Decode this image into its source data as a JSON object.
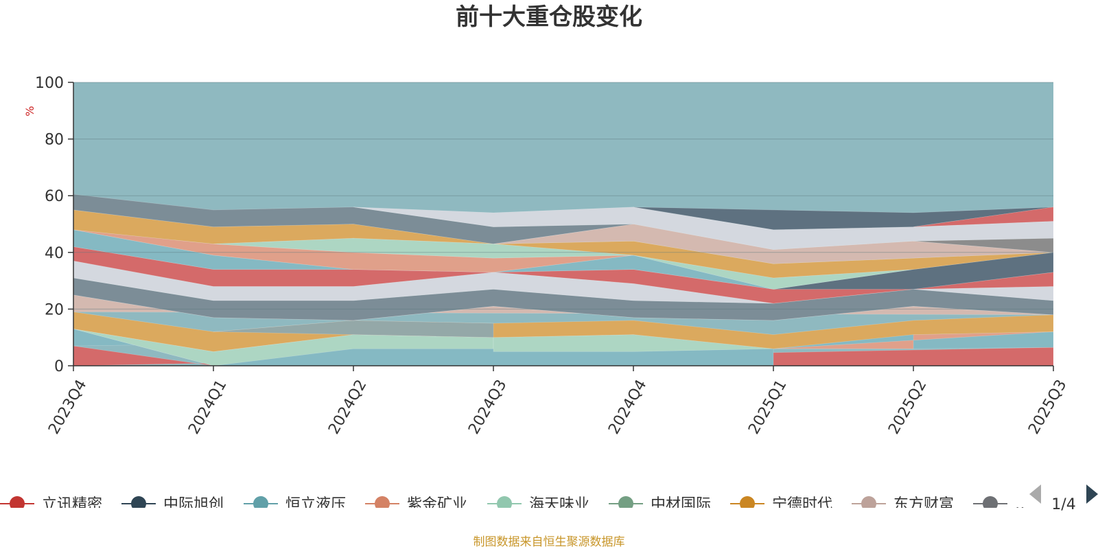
{
  "chart_data": {
    "type": "area",
    "title": "前十大重仓股变化",
    "ylabel": "%",
    "ylim": [
      0,
      100
    ],
    "yticks": [
      0,
      20,
      40,
      60,
      80,
      100
    ],
    "categories": [
      "2023Q4",
      "2024Q1",
      "2024Q2",
      "2024Q3",
      "2024Q4",
      "2025Q1",
      "2025Q2",
      "2025Q3"
    ],
    "layers": [
      {
        "color": "#d46a6a",
        "points": [
          [
            0,
            0
          ],
          [
            0,
            7
          ],
          [
            1,
            0
          ],
          [
            2,
            0
          ],
          [
            3,
            0
          ],
          [
            3,
            5
          ],
          [
            4,
            5
          ],
          [
            5,
            0
          ],
          [
            6,
            0
          ],
          [
            7,
            0
          ],
          [
            7,
            6.5
          ]
        ]
      },
      {
        "color": "#5e7180",
        "points": [
          [
            1,
            0
          ],
          [
            2,
            6
          ],
          [
            3,
            6
          ],
          [
            3,
            0
          ]
        ]
      },
      {
        "color": "#85b9c3",
        "points": [
          [
            0,
            7
          ],
          [
            0,
            13
          ],
          [
            1,
            0
          ],
          [
            5,
            0
          ],
          [
            5,
            6
          ],
          [
            6,
            6
          ],
          [
            7,
            6.5
          ],
          [
            7,
            12
          ]
        ]
      },
      {
        "color": "#e0a08a",
        "points": [
          [
            5,
            6
          ],
          [
            6,
            6
          ],
          [
            6,
            11
          ],
          [
            7,
            12
          ]
        ]
      },
      {
        "color": "#add6c3",
        "points": [
          [
            0,
            13
          ],
          [
            1,
            5
          ],
          [
            2,
            11
          ],
          [
            3,
            10
          ],
          [
            3,
            6
          ],
          [
            2,
            6
          ],
          [
            1,
            0
          ]
        ]
      },
      {
        "color": "#add6c3",
        "points": [
          [
            3,
            10
          ],
          [
            4,
            11
          ],
          [
            5,
            6
          ],
          [
            4,
            5
          ],
          [
            3,
            5
          ]
        ]
      },
      {
        "color": "#dba95e",
        "points": [
          [
            0,
            13
          ],
          [
            0,
            19
          ],
          [
            1,
            12
          ],
          [
            2,
            16
          ],
          [
            3,
            15
          ],
          [
            4,
            16
          ],
          [
            5,
            11
          ],
          [
            6,
            16
          ],
          [
            7,
            18
          ],
          [
            7,
            12
          ],
          [
            6,
            11
          ],
          [
            5,
            6
          ],
          [
            4,
            11
          ],
          [
            3,
            10
          ],
          [
            2,
            11
          ],
          [
            1,
            5
          ]
        ]
      },
      {
        "color": "#94a8a8",
        "points": [
          [
            1,
            12
          ],
          [
            2,
            16
          ],
          [
            3,
            15
          ],
          [
            3,
            10
          ],
          [
            2,
            11
          ]
        ]
      },
      {
        "color": "#d4b9b0",
        "points": [
          [
            0,
            19
          ],
          [
            0,
            25
          ],
          [
            1,
            17
          ],
          [
            2,
            16
          ],
          [
            3,
            21
          ],
          [
            4,
            17
          ],
          [
            5,
            16
          ],
          [
            6,
            21
          ],
          [
            7,
            18
          ]
        ]
      },
      {
        "color": "#7c8d97",
        "points": [
          [
            0,
            25
          ],
          [
            0,
            31
          ],
          [
            1,
            23
          ],
          [
            2,
            23
          ],
          [
            3,
            27
          ],
          [
            4,
            23
          ],
          [
            5,
            22
          ],
          [
            6,
            27
          ],
          [
            7,
            23
          ],
          [
            7,
            18
          ],
          [
            6,
            21
          ],
          [
            5,
            16
          ],
          [
            4,
            17
          ],
          [
            3,
            21
          ],
          [
            2,
            16
          ],
          [
            1,
            17
          ]
        ]
      },
      {
        "color": "#d4d8df",
        "points": [
          [
            0,
            31
          ],
          [
            0,
            37
          ],
          [
            1,
            28
          ],
          [
            2,
            28
          ],
          [
            3,
            33
          ],
          [
            4,
            29
          ],
          [
            5,
            22
          ],
          [
            6,
            27
          ],
          [
            7,
            28
          ],
          [
            7,
            23
          ],
          [
            6,
            27
          ],
          [
            5,
            22
          ],
          [
            4,
            23
          ],
          [
            3,
            27
          ],
          [
            2,
            23
          ],
          [
            1,
            23
          ]
        ]
      },
      {
        "color": "#d46a6a",
        "points": [
          [
            0,
            37
          ],
          [
            0,
            42
          ],
          [
            1,
            34
          ],
          [
            2,
            34
          ],
          [
            3,
            33
          ],
          [
            4,
            34
          ],
          [
            5,
            27
          ],
          [
            6,
            27
          ],
          [
            7,
            33
          ],
          [
            7,
            28
          ],
          [
            6,
            27
          ],
          [
            5,
            22
          ],
          [
            4,
            29
          ],
          [
            3,
            33
          ],
          [
            2,
            28
          ],
          [
            1,
            28
          ]
        ]
      },
      {
        "color": "#5e7180",
        "points": [
          [
            5,
            27
          ],
          [
            6,
            34
          ],
          [
            7,
            40
          ],
          [
            7,
            33
          ],
          [
            6,
            27
          ]
        ]
      },
      {
        "color": "#85b9c3",
        "points": [
          [
            0,
            42
          ],
          [
            0,
            48
          ],
          [
            1,
            39
          ],
          [
            2,
            34
          ],
          [
            3,
            33
          ],
          [
            4,
            39
          ],
          [
            5,
            27
          ],
          [
            4,
            34
          ],
          [
            3,
            33
          ],
          [
            2,
            34
          ],
          [
            1,
            34
          ]
        ]
      },
      {
        "color": "#e0a08a",
        "points": [
          [
            0,
            48
          ],
          [
            1,
            43
          ],
          [
            2,
            40
          ],
          [
            3,
            38
          ],
          [
            4,
            39
          ],
          [
            3,
            33
          ],
          [
            2,
            34
          ],
          [
            1,
            39
          ]
        ]
      },
      {
        "color": "#add6c3",
        "points": [
          [
            1,
            43
          ],
          [
            2,
            45
          ],
          [
            3,
            43
          ],
          [
            4,
            39
          ],
          [
            3,
            38
          ],
          [
            2,
            40
          ]
        ]
      },
      {
        "color": "#add6c3",
        "points": [
          [
            4,
            39
          ],
          [
            5,
            31
          ],
          [
            6,
            34
          ],
          [
            5,
            27
          ]
        ]
      },
      {
        "color": "#dba95e",
        "points": [
          [
            0,
            48
          ],
          [
            0,
            55
          ],
          [
            1,
            49
          ],
          [
            2,
            50
          ],
          [
            3,
            43
          ],
          [
            4,
            44
          ],
          [
            5,
            36
          ],
          [
            6,
            38
          ],
          [
            7,
            40
          ],
          [
            6,
            34
          ],
          [
            5,
            31
          ],
          [
            4,
            39
          ],
          [
            3,
            43
          ],
          [
            2,
            45
          ],
          [
            1,
            43
          ]
        ]
      },
      {
        "color": "#d4b9b0",
        "points": [
          [
            3,
            43
          ],
          [
            4,
            50
          ],
          [
            5,
            41
          ],
          [
            6,
            44
          ],
          [
            7,
            40
          ],
          [
            6,
            38
          ],
          [
            5,
            36
          ],
          [
            4,
            44
          ]
        ]
      },
      {
        "color": "#7c8d97",
        "points": [
          [
            0,
            55
          ],
          [
            0,
            60.5
          ],
          [
            1,
            55
          ],
          [
            2,
            56
          ],
          [
            3,
            49
          ],
          [
            4,
            50
          ],
          [
            3,
            43
          ],
          [
            2,
            50
          ],
          [
            1,
            49
          ]
        ]
      },
      {
        "color": "#8c8c8c",
        "points": [
          [
            6,
            44
          ],
          [
            7,
            45
          ],
          [
            7,
            40
          ]
        ]
      },
      {
        "color": "#d4d8df",
        "points": [
          [
            2,
            56
          ],
          [
            3,
            54
          ],
          [
            4,
            56
          ],
          [
            5,
            48
          ],
          [
            6,
            49
          ],
          [
            7,
            51
          ],
          [
            7,
            45
          ],
          [
            6,
            44
          ],
          [
            5,
            41
          ],
          [
            4,
            50
          ],
          [
            3,
            49
          ]
        ]
      },
      {
        "color": "#5e7180",
        "points": [
          [
            4,
            56
          ],
          [
            5,
            55
          ],
          [
            6,
            54
          ],
          [
            7,
            56
          ],
          [
            6,
            49
          ],
          [
            5,
            48
          ]
        ]
      },
      {
        "color": "#d46a6a",
        "points": [
          [
            6,
            49
          ],
          [
            7,
            56
          ],
          [
            7,
            51
          ]
        ]
      }
    ],
    "legend": {
      "placement": "bottom",
      "page": "1/4",
      "items": [
        {
          "name": "立讯精密",
          "color": "#c23531"
        },
        {
          "name": "中际旭创",
          "color": "#2f4554"
        },
        {
          "name": "恒立液压",
          "color": "#61a0a8"
        },
        {
          "name": "紫金矿业",
          "color": "#d48265"
        },
        {
          "name": "海天味业",
          "color": "#91c7ae"
        },
        {
          "name": "中材国际",
          "color": "#749f83"
        },
        {
          "name": "宁德时代",
          "color": "#ca8622"
        },
        {
          "name": "东方财富",
          "color": "#bda29a"
        },
        {
          "name": "…",
          "color": "#6e7074"
        }
      ]
    },
    "top_area_color": "#8fb9c0",
    "grid": true,
    "source": "制图数据来自恒生聚源数据库"
  }
}
